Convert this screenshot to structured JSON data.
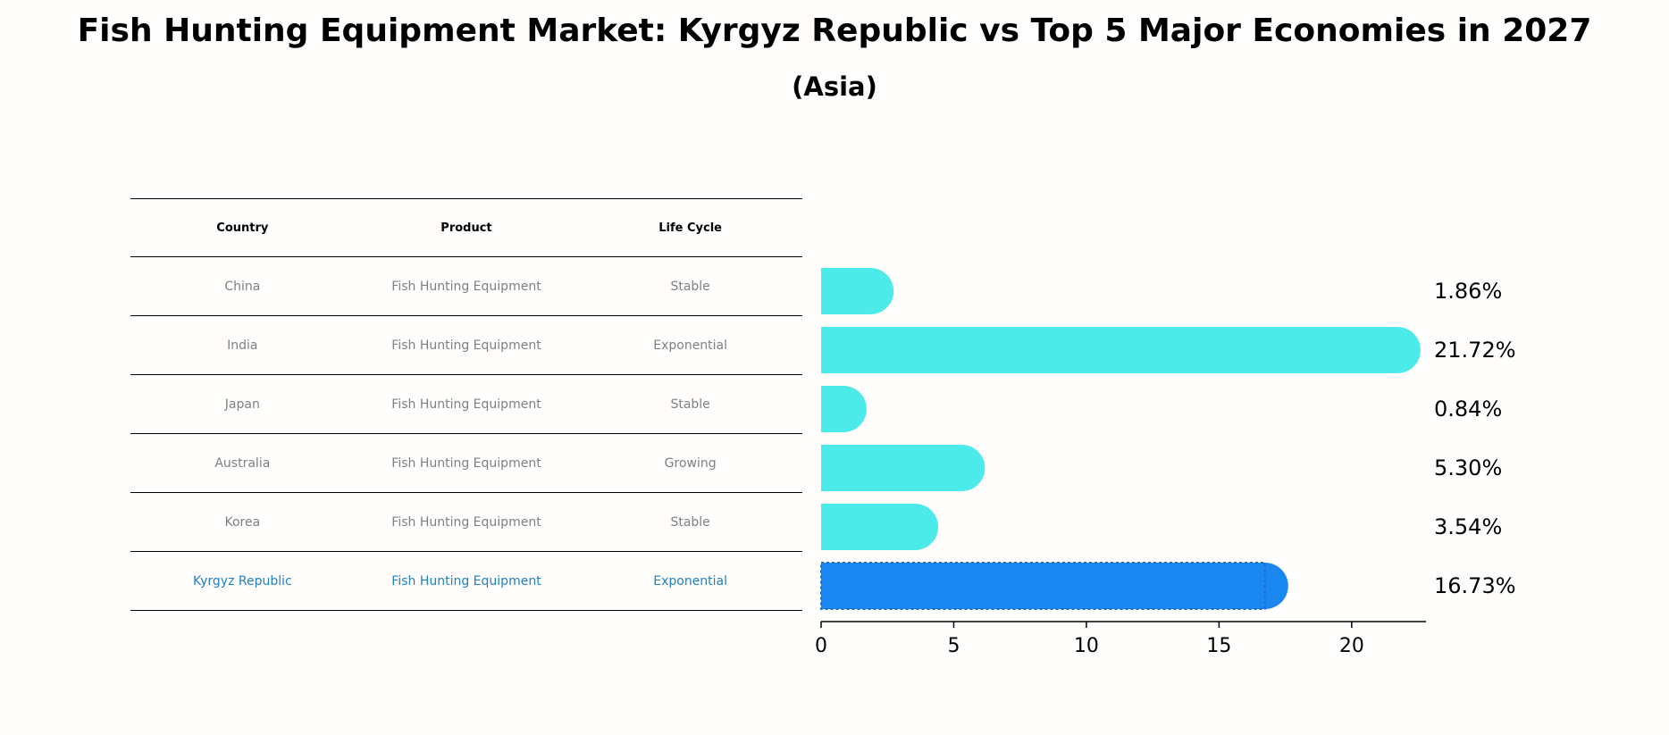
{
  "title": "Fish Hunting Equipment Market: Kyrgyz Republic vs Top 5 Major Economies in 2027",
  "subtitle": "(Asia)",
  "table": {
    "headers": [
      "Country",
      "Product",
      "Life Cycle"
    ],
    "rows": [
      {
        "country": "China",
        "product": "Fish Hunting Equipment",
        "life_cycle": "Stable"
      },
      {
        "country": "India",
        "product": "Fish Hunting Equipment",
        "life_cycle": "Exponential"
      },
      {
        "country": "Japan",
        "product": "Fish Hunting Equipment",
        "life_cycle": "Stable"
      },
      {
        "country": "Australia",
        "product": "Fish Hunting Equipment",
        "life_cycle": "Growing"
      },
      {
        "country": "Korea",
        "product": "Fish Hunting Equipment",
        "life_cycle": "Stable"
      },
      {
        "country": "Kyrgyz Republic",
        "product": "Fish Hunting Equipment",
        "life_cycle": "Exponential"
      }
    ]
  },
  "chart_data": {
    "type": "bar",
    "orientation": "horizontal",
    "categories": [
      "China",
      "India",
      "Japan",
      "Australia",
      "Korea",
      "Kyrgyz Republic"
    ],
    "values": [
      1.86,
      21.72,
      0.84,
      5.3,
      3.54,
      16.73
    ],
    "value_labels": [
      "1.86%",
      "21.72%",
      "0.84%",
      "5.30%",
      "3.54%",
      "16.73%"
    ],
    "highlight": "Kyrgyz Republic",
    "xlim": [
      0,
      22.8
    ],
    "xticks": [
      0,
      5,
      10,
      15,
      20
    ],
    "colors": {
      "default": "#4deaea",
      "highlight": "#1a86f0"
    }
  }
}
